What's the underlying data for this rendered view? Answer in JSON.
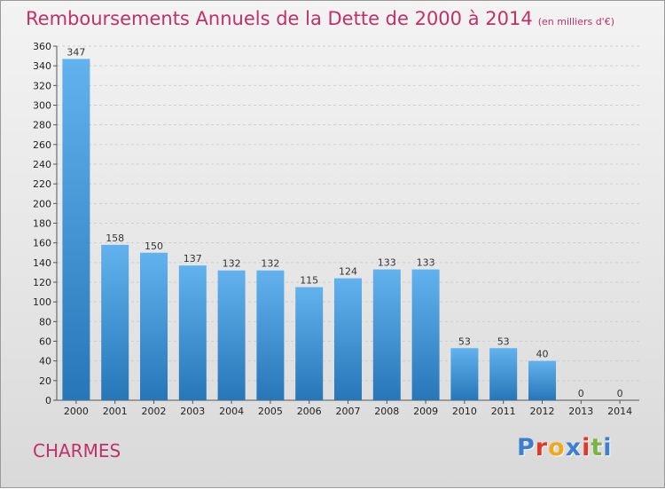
{
  "header": {
    "title": "Remboursements Annuels de la Dette de 2000 à 2014",
    "unit": "(en milliers d'€)"
  },
  "footer": {
    "place": "CHARMES",
    "logo_letters": [
      "P",
      "r",
      "o",
      "x",
      "i",
      "t",
      "i"
    ],
    "logo_colors": [
      "#3a7fd0",
      "#e0392b",
      "#f2a81d",
      "#3a7fd0",
      "#e0392b",
      "#7cb342",
      "#3a7fd0"
    ]
  },
  "chart_data": {
    "type": "bar",
    "categories": [
      "2000",
      "2001",
      "2002",
      "2003",
      "2004",
      "2005",
      "2006",
      "2007",
      "2008",
      "2009",
      "2010",
      "2011",
      "2012",
      "2013",
      "2014"
    ],
    "values": [
      347,
      158,
      150,
      137,
      132,
      132,
      115,
      124,
      133,
      133,
      53,
      53,
      40,
      0,
      0
    ],
    "title": "Remboursements Annuels de la Dette de 2000 à 2014",
    "subtitle": "(en milliers d'€)",
    "xlabel": "",
    "ylabel": "",
    "ylim": [
      0,
      360
    ],
    "ytick_step": 20,
    "grid": true,
    "bar_color_top": "#62b2ee",
    "bar_color_bottom": "#2776b8"
  }
}
